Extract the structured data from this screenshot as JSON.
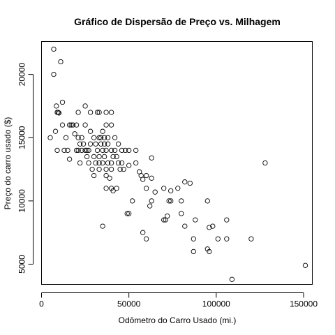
{
  "chart_data": {
    "type": "scatter",
    "title": "Gráfico de Dispersão de Preço vs. Milhagem",
    "xlabel": "Odômetro do Carro Usado (mi.)",
    "ylabel": "Preço do carro usado ($)",
    "xlim": [
      0,
      155000
    ],
    "ylim": [
      3400,
      22600
    ],
    "x_ticks": [
      0,
      50000,
      100000,
      150000
    ],
    "y_ticks": [
      5000,
      10000,
      15000,
      20000
    ],
    "x_tick_labels": [
      "0",
      "50000",
      "100000",
      "150000"
    ],
    "y_tick_labels": [
      "5000",
      "10000",
      "15000",
      "20000"
    ],
    "grid": false,
    "color": "#000000",
    "points": [
      [
        7000,
        22000
      ],
      [
        11000,
        21000
      ],
      [
        7000,
        20000
      ],
      [
        12000,
        17800
      ],
      [
        8500,
        17500
      ],
      [
        9000,
        17000
      ],
      [
        9500,
        17000
      ],
      [
        10000,
        16950
      ],
      [
        25000,
        17500
      ],
      [
        21000,
        17000
      ],
      [
        28000,
        17000
      ],
      [
        32000,
        17000
      ],
      [
        33000,
        17000
      ],
      [
        37000,
        17000
      ],
      [
        40000,
        17000
      ],
      [
        12000,
        16000
      ],
      [
        16000,
        16000
      ],
      [
        17000,
        16000
      ],
      [
        18000,
        16000
      ],
      [
        20000,
        16000
      ],
      [
        25000,
        16000
      ],
      [
        37000,
        16000
      ],
      [
        40000,
        16000
      ],
      [
        35000,
        15500
      ],
      [
        5000,
        15000
      ],
      [
        8000,
        15500
      ],
      [
        14000,
        15000
      ],
      [
        19000,
        15300
      ],
      [
        21000,
        15000
      ],
      [
        23000,
        15000
      ],
      [
        28000,
        15500
      ],
      [
        30000,
        15000
      ],
      [
        33000,
        15000
      ],
      [
        34000,
        15000
      ],
      [
        36000,
        15000
      ],
      [
        38000,
        15000
      ],
      [
        42000,
        15000
      ],
      [
        22000,
        14500
      ],
      [
        24000,
        14500
      ],
      [
        28000,
        14500
      ],
      [
        31000,
        14500
      ],
      [
        34000,
        14500
      ],
      [
        36000,
        14500
      ],
      [
        38000,
        14500
      ],
      [
        44000,
        14500
      ],
      [
        9000,
        14000
      ],
      [
        13000,
        14000
      ],
      [
        15000,
        14000
      ],
      [
        20000,
        14000
      ],
      [
        21000,
        14000
      ],
      [
        23000,
        14000
      ],
      [
        25000,
        14000
      ],
      [
        26000,
        14000
      ],
      [
        27000,
        14000
      ],
      [
        32000,
        14000
      ],
      [
        35000,
        14000
      ],
      [
        37000,
        14000
      ],
      [
        40000,
        14000
      ],
      [
        42000,
        14000
      ],
      [
        46000,
        14000
      ],
      [
        48000,
        14000
      ],
      [
        50000,
        14000
      ],
      [
        54000,
        14000
      ],
      [
        26000,
        13500
      ],
      [
        30000,
        13500
      ],
      [
        33000,
        13500
      ],
      [
        36000,
        13500
      ],
      [
        41000,
        13500
      ],
      [
        43000,
        13500
      ],
      [
        63000,
        13400
      ],
      [
        16000,
        13300
      ],
      [
        22000,
        13000
      ],
      [
        27000,
        13000
      ],
      [
        31000,
        13000
      ],
      [
        33000,
        13000
      ],
      [
        35000,
        13000
      ],
      [
        38000,
        13000
      ],
      [
        40000,
        13000
      ],
      [
        44000,
        13000
      ],
      [
        46000,
        13000
      ],
      [
        50000,
        12800
      ],
      [
        54000,
        13000
      ],
      [
        29000,
        12500
      ],
      [
        33000,
        12500
      ],
      [
        37000,
        12500
      ],
      [
        40000,
        12500
      ],
      [
        45000,
        12500
      ],
      [
        47000,
        12500
      ],
      [
        56000,
        12300
      ],
      [
        30000,
        12000
      ],
      [
        37000,
        12000
      ],
      [
        39000,
        11800
      ],
      [
        57000,
        12000
      ],
      [
        60000,
        12000
      ],
      [
        58000,
        11700
      ],
      [
        63000,
        11800
      ],
      [
        37000,
        11000
      ],
      [
        40000,
        11000
      ],
      [
        43000,
        11000
      ],
      [
        41000,
        10800
      ],
      [
        60000,
        11000
      ],
      [
        65000,
        10700
      ],
      [
        70000,
        11000
      ],
      [
        74000,
        10800
      ],
      [
        78000,
        11000
      ],
      [
        82000,
        11500
      ],
      [
        85000,
        11400
      ],
      [
        128000,
        13000
      ],
      [
        63000,
        10000
      ],
      [
        52000,
        10000
      ],
      [
        73000,
        10000
      ],
      [
        74000,
        10000
      ],
      [
        80000,
        10000
      ],
      [
        95000,
        10000
      ],
      [
        62000,
        9600
      ],
      [
        49000,
        9000
      ],
      [
        50000,
        9000
      ],
      [
        80000,
        9000
      ],
      [
        72000,
        8800
      ],
      [
        70000,
        8500
      ],
      [
        71000,
        8500
      ],
      [
        88000,
        8500
      ],
      [
        106000,
        8500
      ],
      [
        35000,
        8000
      ],
      [
        82000,
        8000
      ],
      [
        96000,
        7900
      ],
      [
        98000,
        8000
      ],
      [
        58000,
        7500
      ],
      [
        60000,
        7000
      ],
      [
        87000,
        7000
      ],
      [
        101000,
        7000
      ],
      [
        106000,
        7000
      ],
      [
        120000,
        7000
      ],
      [
        95000,
        6200
      ],
      [
        87000,
        6000
      ],
      [
        96000,
        6000
      ],
      [
        151000,
        4900
      ],
      [
        109000,
        3800
      ]
    ]
  }
}
